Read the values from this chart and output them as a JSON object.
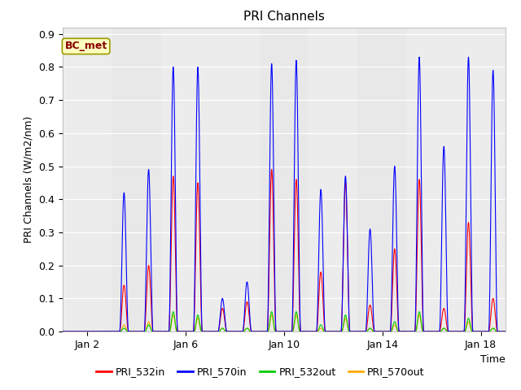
{
  "title": "PRI Channels",
  "xlabel": "Time",
  "ylabel": "PRI Channels (W/m2/nm)",
  "ylim": [
    0.0,
    0.92
  ],
  "yticks": [
    0.0,
    0.1,
    0.2,
    0.3,
    0.4,
    0.5,
    0.6,
    0.7,
    0.8,
    0.9
  ],
  "bg_color": "#ffffff",
  "plot_bg_color": "#e8e8e8",
  "annotation_text": "BC_met",
  "annotation_facecolor": "#ffffc0",
  "annotation_edgecolor": "#999900",
  "annotation_textcolor": "#880000",
  "series_colors": {
    "PRI_532in": "#ff0000",
    "PRI_570in": "#0000ff",
    "PRI_532out": "#00cc00",
    "PRI_570out": "#ffaa00"
  },
  "legend_labels": [
    "PRI_532in",
    "PRI_570in",
    "PRI_532out",
    "PRI_570out"
  ],
  "x_tick_labels": [
    "Jan 2",
    "Jan 6",
    "Jan 10",
    "Jan 14",
    "Jan 18"
  ],
  "x_tick_positions": [
    1,
    5,
    9,
    13,
    17
  ],
  "title_fontsize": 11,
  "axis_label_fontsize": 9,
  "tick_fontsize": 9,
  "stripe_color_light": "#f5f5f5",
  "stripe_color_dark": "#dcdcdc",
  "grid_color": "#ffffff"
}
